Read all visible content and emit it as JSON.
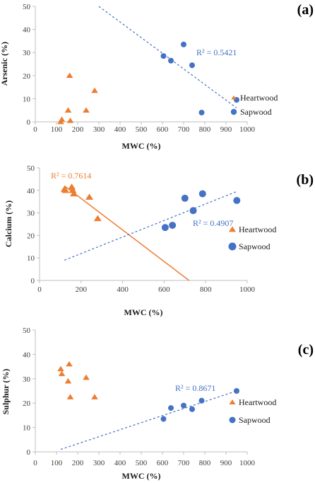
{
  "colors": {
    "heartwood": "#ED7D31",
    "sapwood": "#4472C4",
    "axis": "#BFBFBF",
    "tick": "#404040"
  },
  "chart_data": [
    {
      "type": "scatter",
      "panel_label": "(a)",
      "xlabel": "MWC (%)",
      "ylabel": "Arsenic (%)",
      "xlim": [
        0,
        1000
      ],
      "ylim": [
        0,
        50
      ],
      "xticks": [
        "0",
        "100",
        "200",
        "300",
        "400",
        "500",
        "600",
        "700",
        "800",
        "900",
        "1000"
      ],
      "yticks": [
        "0",
        "10",
        "20",
        "30",
        "40",
        "50"
      ],
      "legend_position": "right",
      "series": [
        {
          "name": "Heartwood",
          "marker": "triangle",
          "points": [
            [
              120,
              0
            ],
            [
              125,
              1
            ],
            [
              155,
              5
            ],
            [
              162,
              20
            ],
            [
              165,
              0.5
            ],
            [
              240,
              5
            ],
            [
              280,
              13.5
            ]
          ]
        },
        {
          "name": "Sapwood",
          "marker": "circle",
          "points": [
            [
              605,
              28.5
            ],
            [
              640,
              26.5
            ],
            [
              700,
              33.5
            ],
            [
              740,
              24.5
            ],
            [
              785,
              4
            ],
            [
              950,
              9.5
            ]
          ]
        }
      ],
      "trendlines": [
        {
          "series": "Sapwood",
          "label": "R² = 0.5421",
          "from": [
            300,
            50
          ],
          "to": [
            950,
            6
          ]
        }
      ]
    },
    {
      "type": "scatter",
      "panel_label": "(b)",
      "xlabel": "MWC (%)",
      "ylabel": "Calcium (%)",
      "xlim": [
        0,
        1000
      ],
      "ylim": [
        0,
        50
      ],
      "xticks": [
        "0",
        "200",
        "400",
        "600",
        "800",
        "1000"
      ],
      "yticks": [
        "0",
        "10",
        "20",
        "30",
        "40",
        "50"
      ],
      "legend_position": "right",
      "series": [
        {
          "name": "Heartwood",
          "marker": "triangle",
          "points": [
            [
              120,
              40.5
            ],
            [
              125,
              40
            ],
            [
              155,
              41.5
            ],
            [
              160,
              40
            ],
            [
              165,
              38.5
            ],
            [
              240,
              37
            ],
            [
              280,
              27.5
            ]
          ]
        },
        {
          "name": "Sapwood",
          "marker": "circle",
          "points": [
            [
              605,
              23.5
            ],
            [
              640,
              24.5
            ],
            [
              700,
              36.5
            ],
            [
              740,
              31
            ],
            [
              785,
              38.5
            ],
            [
              950,
              35.5
            ]
          ]
        }
      ],
      "trendlines": [
        {
          "series": "Heartwood",
          "label": "R² = 0.7614",
          "from": [
            120,
            42
          ],
          "to": [
            720,
            0
          ]
        },
        {
          "series": "Sapwood",
          "label": "R² = 0.4907",
          "from": [
            120,
            9
          ],
          "to": [
            950,
            39.5
          ]
        }
      ]
    },
    {
      "type": "scatter",
      "panel_label": "(c)",
      "xlabel": "MWC (%)",
      "ylabel": "Sulphur (%)",
      "xlim": [
        0,
        1000
      ],
      "ylim": [
        0,
        50
      ],
      "xticks": [
        "0",
        "100",
        "200",
        "300",
        "400",
        "500",
        "600",
        "700",
        "800",
        "900",
        "1000"
      ],
      "yticks": [
        "0",
        "10",
        "20",
        "30",
        "40",
        "50"
      ],
      "legend_position": "right",
      "series": [
        {
          "name": "Heartwood",
          "marker": "triangle",
          "points": [
            [
              120,
              34
            ],
            [
              125,
              32
            ],
            [
              155,
              29
            ],
            [
              160,
              36
            ],
            [
              165,
              22.5
            ],
            [
              240,
              30.5
            ],
            [
              280,
              22.5
            ]
          ]
        },
        {
          "name": "Sapwood",
          "marker": "circle",
          "points": [
            [
              605,
              13.5
            ],
            [
              640,
              18
            ],
            [
              700,
              19
            ],
            [
              740,
              17.5
            ],
            [
              785,
              21
            ],
            [
              950,
              25
            ]
          ]
        }
      ],
      "trendlines": [
        {
          "series": "Sapwood",
          "label": "R² = 0.8671",
          "from": [
            120,
            1
          ],
          "to": [
            950,
            25
          ]
        }
      ]
    }
  ]
}
